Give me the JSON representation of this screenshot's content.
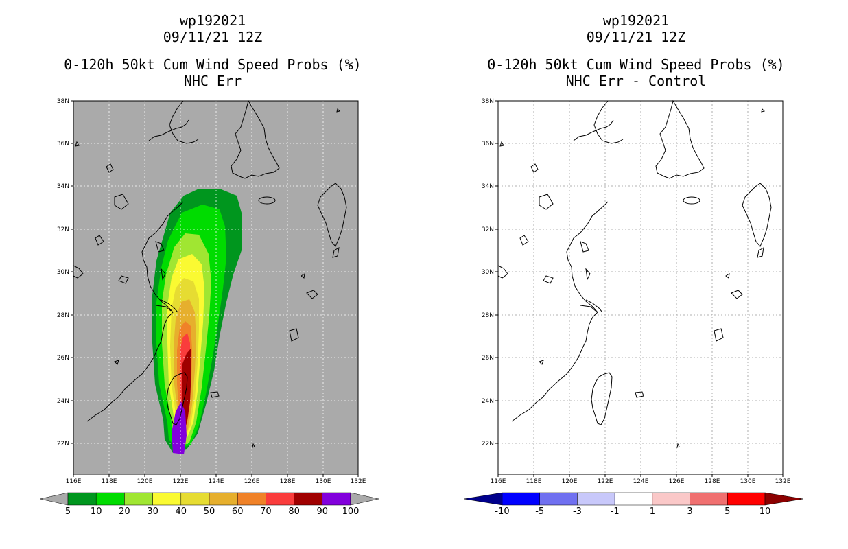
{
  "left_panel": {
    "title_line1": "wp192021",
    "title_line2": "09/11/21 12Z",
    "title_line3": "0-120h 50kt Cum Wind Speed Probs (%)",
    "title_line4": "NHC Err",
    "background_color": "#aaaaaa",
    "colorbar": {
      "colors": [
        "#00961e",
        "#00dc00",
        "#a0e632",
        "#fafa32",
        "#e6dc32",
        "#e6af2d",
        "#f08228",
        "#fa3c3c",
        "#a00000",
        "#8200dc"
      ],
      "labels": [
        "5",
        "10",
        "20",
        "30",
        "40",
        "50",
        "60",
        "70",
        "80",
        "90",
        "100"
      ],
      "end_arrow_color": "#aaaaaa"
    }
  },
  "right_panel": {
    "title_line1": "wp192021",
    "title_line2": "09/11/21 12Z",
    "title_line3": "0-120h 50kt Cum Wind Speed Probs (%)",
    "title_line4": "NHC Err - Control",
    "background_color": "#ffffff",
    "colorbar": {
      "colors": [
        "#0000ff",
        "#7070f0",
        "#c8c8fa",
        "#ffffff",
        "#fac8c8",
        "#f07070",
        "#ff0000"
      ],
      "labels": [
        "-10",
        "-5",
        "-3",
        "-1",
        "1",
        "3",
        "5",
        "10"
      ],
      "left_arrow_color": "#00008c",
      "right_arrow_color": "#8c0000"
    }
  },
  "axes": {
    "lon_labels": [
      "116E",
      "118E",
      "120E",
      "122E",
      "124E",
      "126E",
      "128E",
      "130E",
      "132E"
    ],
    "lat_labels": [
      "22N",
      "24N",
      "26N",
      "28N",
      "30N",
      "32N",
      "34N",
      "36N",
      "38N"
    ]
  },
  "map_extent": {
    "lon_min": 116,
    "lon_max": 132,
    "lat_min": 20.8,
    "lat_max": 38
  }
}
